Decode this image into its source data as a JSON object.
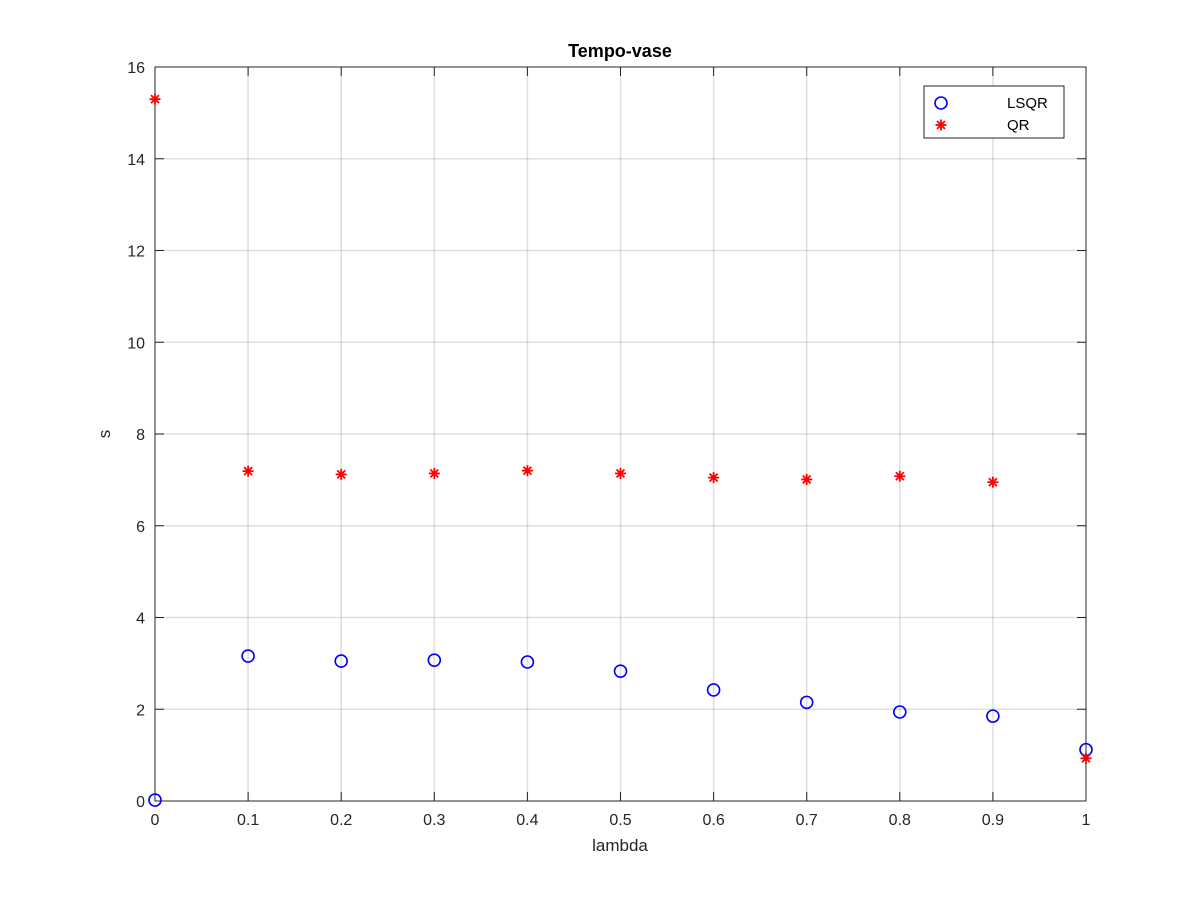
{
  "chart_data": {
    "type": "scatter",
    "title": "Tempo-vase",
    "xlabel": "lambda",
    "ylabel": "s",
    "xlim": [
      0,
      1
    ],
    "ylim": [
      0,
      16
    ],
    "xticks": [
      0,
      0.1,
      0.2,
      0.3,
      0.4,
      0.5,
      0.6,
      0.7,
      0.8,
      0.9,
      1
    ],
    "xtick_labels": [
      "0",
      "0.1",
      "0.2",
      "0.3",
      "0.4",
      "0.5",
      "0.6",
      "0.7",
      "0.8",
      "0.9",
      "1"
    ],
    "yticks": [
      0,
      2,
      4,
      6,
      8,
      10,
      12,
      14,
      16
    ],
    "ytick_labels": [
      "0",
      "2",
      "4",
      "6",
      "8",
      "10",
      "12",
      "14",
      "16"
    ],
    "grid": true,
    "legend_position": "top-right",
    "series": [
      {
        "name": "LSQR",
        "marker": "circle",
        "color": "#0000ff",
        "x": [
          0,
          0.1,
          0.2,
          0.3,
          0.4,
          0.5,
          0.6,
          0.7,
          0.8,
          0.9,
          1
        ],
        "y": [
          0.02,
          3.16,
          3.05,
          3.07,
          3.03,
          2.83,
          2.42,
          2.15,
          1.94,
          1.85,
          1.12
        ]
      },
      {
        "name": "QR",
        "marker": "asterisk",
        "color": "#ff0000",
        "x": [
          0,
          0.1,
          0.2,
          0.3,
          0.4,
          0.5,
          0.6,
          0.7,
          0.8,
          0.9,
          1
        ],
        "y": [
          15.3,
          7.19,
          7.12,
          7.14,
          7.2,
          7.14,
          7.05,
          7.01,
          7.08,
          6.95,
          0.93
        ]
      }
    ]
  }
}
